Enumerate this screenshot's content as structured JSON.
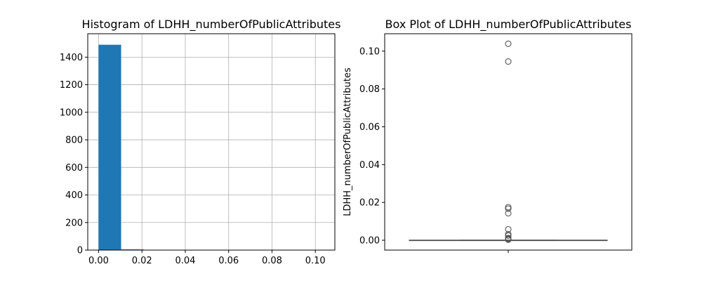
{
  "chart_data": [
    {
      "type": "histogram",
      "title": "Histogram of LDHH_numberOfPublicAttributes",
      "xlabel": "",
      "ylabel": "",
      "grid": true,
      "xlim": [
        -0.005,
        0.109
      ],
      "ylim": [
        0,
        1570
      ],
      "xticks": [
        0.0,
        0.02,
        0.04,
        0.06,
        0.08,
        0.1
      ],
      "xtick_labels": [
        "0.00",
        "0.02",
        "0.04",
        "0.06",
        "0.08",
        "0.10"
      ],
      "yticks": [
        0,
        200,
        400,
        600,
        800,
        1000,
        1200,
        1400
      ],
      "ytick_labels": [
        "0",
        "200",
        "400",
        "600",
        "800",
        "1000",
        "1200",
        "1400"
      ],
      "bins": [
        {
          "x0": 0.0,
          "x1": 0.0104,
          "count": 1490
        },
        {
          "x0": 0.0104,
          "x1": 0.0208,
          "count": 5
        },
        {
          "x0": 0.0208,
          "x1": 0.0312,
          "count": 0
        },
        {
          "x0": 0.0312,
          "x1": 0.0416,
          "count": 0
        },
        {
          "x0": 0.0416,
          "x1": 0.052,
          "count": 0
        },
        {
          "x0": 0.052,
          "x1": 0.0624,
          "count": 0
        },
        {
          "x0": 0.0624,
          "x1": 0.0728,
          "count": 0
        },
        {
          "x0": 0.0728,
          "x1": 0.0832,
          "count": 0
        },
        {
          "x0": 0.0832,
          "x1": 0.0936,
          "count": 1
        },
        {
          "x0": 0.0936,
          "x1": 0.104,
          "count": 1
        }
      ],
      "bar_color": "#1f77b4"
    },
    {
      "type": "box",
      "title": "Box Plot of LDHH_numberOfPublicAttributes",
      "xlabel": "",
      "ylabel": "LDHH_numberOfPublicAttributes",
      "grid": false,
      "ylim": [
        -0.0052,
        0.1092
      ],
      "yticks": [
        0.0,
        0.02,
        0.04,
        0.06,
        0.08,
        0.1
      ],
      "ytick_labels": [
        "0.00",
        "0.02",
        "0.04",
        "0.06",
        "0.08",
        "0.10"
      ],
      "box": {
        "whisker_low": 0.0,
        "q1": 0.0,
        "median": 0.0,
        "q3": 0.0,
        "whisker_high": 0.0
      },
      "outliers": [
        0.1039,
        0.0945,
        0.0175,
        0.0167,
        0.0143,
        0.0058,
        0.0032,
        0.0025,
        0.0012,
        0.0008,
        0.0005,
        0.0003
      ],
      "line_color": "#555555"
    }
  ]
}
